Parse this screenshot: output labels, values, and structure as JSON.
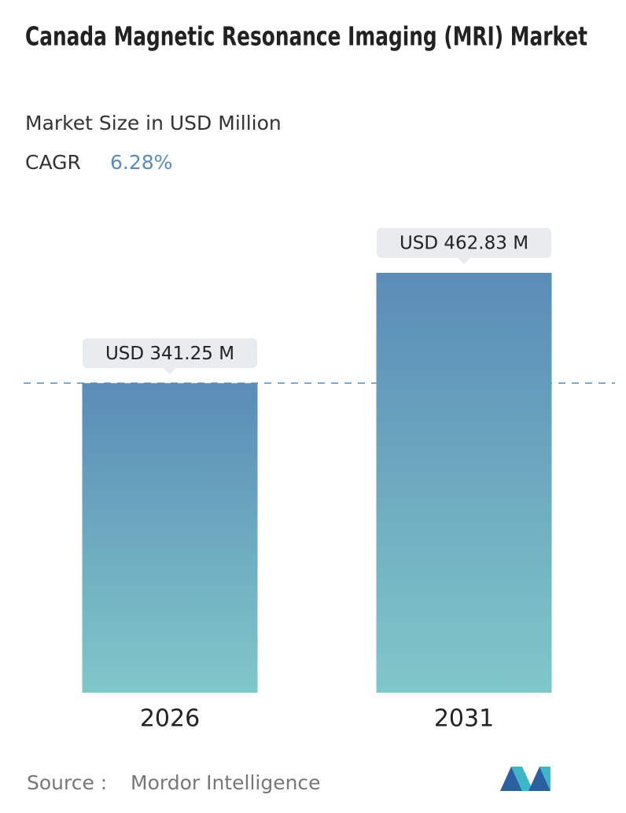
{
  "chart_data": {
    "type": "bar",
    "title": "Canada Magnetic Resonance Imaging (MRI) Market",
    "subtitle": "Market Size in USD Million",
    "cagr_label": "CAGR",
    "cagr": "6.28%",
    "categories": [
      "2026",
      "2031"
    ],
    "values": [
      341.25,
      462.83
    ],
    "value_labels": [
      "USD 341.25 M",
      "USD 462.83 M"
    ],
    "gradient": [
      "#5a8cb7",
      "#80c7c9"
    ],
    "source_label": "Source :",
    "source": "Mordor Intelligence"
  }
}
